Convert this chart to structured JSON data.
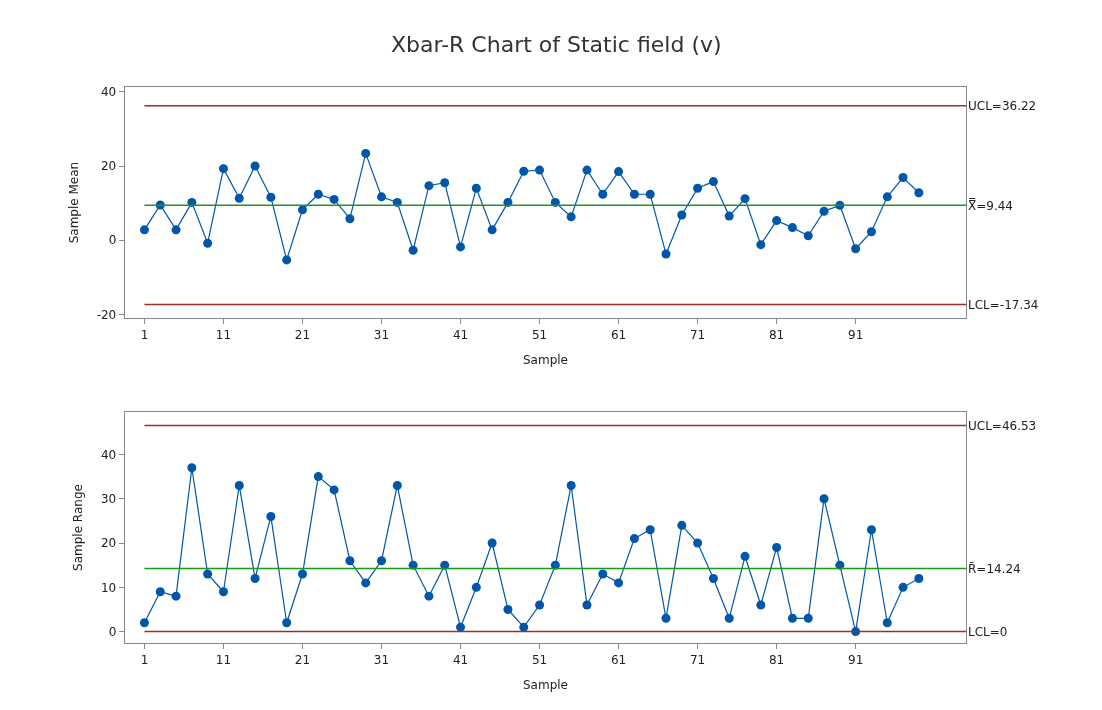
{
  "chart_data": [
    {
      "type": "line",
      "title": "Xbar-R Chart of Static field (v)",
      "xlabel": "Sample",
      "ylabel": "Sample Mean",
      "x": [
        1,
        3,
        5,
        7,
        9,
        11,
        13,
        15,
        17,
        19,
        21,
        23,
        25,
        27,
        29,
        31,
        33,
        35,
        37,
        39,
        41,
        43,
        45,
        47,
        49,
        51,
        53,
        55,
        57,
        59,
        61,
        63,
        65,
        67,
        69,
        71,
        73,
        75,
        77,
        79,
        81,
        83,
        85,
        87,
        89,
        91,
        93,
        95,
        97,
        99
      ],
      "series": [
        {
          "color": "#0056a8",
          "values": [
            2.8,
            9.5,
            2.8,
            10.2,
            -0.8,
            19.3,
            11.3,
            20,
            11.6,
            -5.3,
            8.2,
            12.4,
            11,
            5.8,
            23.4,
            11.7,
            10.2,
            -2.7,
            14.7,
            15.5,
            -1.8,
            14,
            2.8,
            10.2,
            18.6,
            18.9,
            10.2,
            6.3,
            18.9,
            12.4,
            18.5,
            12.4,
            12.4,
            -3.7,
            6.8,
            14,
            15.8,
            6.5,
            11.2,
            -1.2,
            5.3,
            3.4,
            1.2,
            7.8,
            9.4,
            -2.3,
            2.3,
            11.7,
            16.9,
            12.8
          ]
        }
      ],
      "ref_lines": [
        {
          "axis": "y",
          "value": 36.22,
          "label": "UCL=36.22",
          "color": "#a52a2a"
        },
        {
          "axis": "y",
          "value": 9.44,
          "label": "X̿=9.44",
          "color": "#1a9a1a"
        },
        {
          "axis": "y",
          "value": -17.34,
          "label": "LCL=-17.34",
          "color": "#a52a2a"
        }
      ],
      "xlim": [
        -1.5,
        105
      ],
      "xticks": [
        1,
        11,
        21,
        31,
        41,
        51,
        61,
        71,
        81,
        91
      ],
      "ylim": [
        -21,
        41.3
      ],
      "yticks": [
        -20,
        0,
        20,
        40
      ],
      "marker": "circle",
      "line_style": "solid"
    },
    {
      "type": "line",
      "xlabel": "Sample",
      "ylabel": "Sample Range",
      "x": [
        1,
        3,
        5,
        7,
        9,
        11,
        13,
        15,
        17,
        19,
        21,
        23,
        25,
        27,
        29,
        31,
        33,
        35,
        37,
        39,
        41,
        43,
        45,
        47,
        49,
        51,
        53,
        55,
        57,
        59,
        61,
        63,
        65,
        67,
        69,
        71,
        73,
        75,
        77,
        79,
        81,
        83,
        85,
        87,
        89,
        91,
        93,
        95,
        97,
        99
      ],
      "series": [
        {
          "color": "#0056a8",
          "values": [
            2,
            9,
            8,
            37,
            13,
            9,
            33,
            12,
            26,
            2,
            13,
            35,
            32,
            16,
            11,
            16,
            33,
            15,
            8,
            15,
            1,
            10,
            20,
            5,
            1,
            6,
            15,
            33,
            6,
            13,
            11,
            21,
            23,
            3,
            24,
            20,
            12,
            3,
            17,
            6,
            19,
            3,
            3,
            30,
            15,
            0,
            23,
            2,
            10,
            12
          ]
        }
      ],
      "ref_lines": [
        {
          "axis": "y",
          "value": 46.53,
          "label": "UCL=46.53",
          "color": "#a52a2a"
        },
        {
          "axis": "y",
          "value": 14.24,
          "label": "R̄=14.24",
          "color": "#1a9a1a"
        },
        {
          "axis": "y",
          "value": 0,
          "label": "LCL=0",
          "color": "#a52a2a"
        }
      ],
      "xlim": [
        -1.5,
        105
      ],
      "xticks": [
        1,
        11,
        21,
        31,
        41,
        51,
        61,
        71,
        81,
        91
      ],
      "ylim": [
        -2.6,
        49.6
      ],
      "yticks": [
        0,
        10,
        20,
        30,
        40
      ],
      "marker": "circle",
      "line_style": "solid"
    }
  ]
}
